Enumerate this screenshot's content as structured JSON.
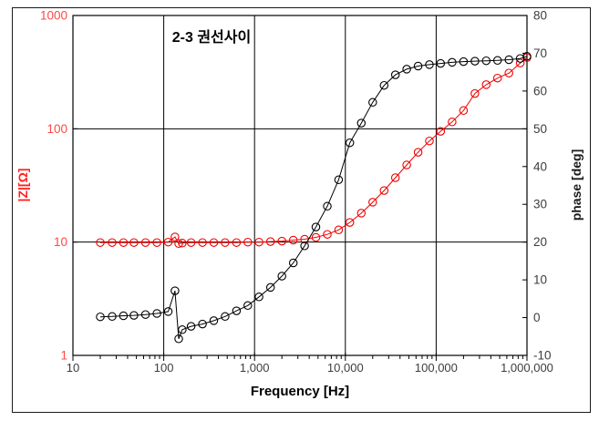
{
  "figure": {
    "background": "#ffffff",
    "frame_color": "#1a1a1a"
  },
  "chart_data": {
    "type": "line",
    "title": "2-3 권선사이",
    "xlabel": "Frequency [Hz]",
    "grid": true,
    "legend": "none",
    "x_axis": {
      "scale": "log",
      "min": 10,
      "max": 1000000,
      "tick_values": [
        10,
        100,
        1000,
        10000,
        100000,
        1000000
      ],
      "tick_labels": [
        "10",
        "100",
        "1,000",
        "10,000",
        "100,000",
        "1,000,000"
      ],
      "tick_label_color": "#3d3d3d"
    },
    "y_left": {
      "label": "|Z|[Ω]",
      "scale": "log",
      "min": 1,
      "max": 1000,
      "tick_values": [
        1,
        10,
        100,
        1000
      ],
      "tick_labels": [
        "1",
        "10",
        "100",
        "1000"
      ],
      "tick_label_color": "#ff4747",
      "title_color": "#ff1f1f"
    },
    "y_right": {
      "label": "phase [deg]",
      "scale": "linear",
      "min": -10,
      "max": 80,
      "tick_values": [
        -10,
        0,
        10,
        20,
        30,
        40,
        50,
        60,
        70,
        80
      ],
      "tick_labels": [
        "-10",
        "0",
        "10",
        "20",
        "30",
        "40",
        "50",
        "60",
        "70",
        "80"
      ],
      "tick_label_color": "#3d3d3d"
    },
    "frequencies": [
      20,
      27,
      36,
      47,
      63,
      84,
      112,
      133,
      146,
      160,
      200,
      267,
      356,
      474,
      632,
      843,
      1120,
      1500,
      2000,
      2670,
      3560,
      4740,
      6320,
      8430,
      11200,
      15000,
      20000,
      26700,
      35600,
      47400,
      63200,
      84300,
      112000,
      150000,
      200000,
      267000,
      356000,
      474000,
      632000,
      843000,
      1000000
    ],
    "series": [
      {
        "name": "|Z| impedance",
        "axis": "left",
        "color": "#f00000",
        "marker": "circle",
        "values": [
          9.9,
          9.9,
          9.9,
          9.9,
          9.9,
          9.9,
          10.0,
          11.1,
          9.7,
          9.8,
          9.9,
          9.9,
          9.9,
          9.9,
          9.9,
          10.0,
          10.0,
          10.1,
          10.2,
          10.4,
          10.6,
          11.0,
          11.7,
          12.8,
          14.9,
          18.0,
          22.5,
          28.5,
          37.0,
          48.0,
          62.0,
          78.0,
          95.0,
          115,
          145,
          205,
          245,
          280,
          310,
          380,
          425
        ]
      },
      {
        "name": "phase",
        "axis": "right",
        "color": "#000000",
        "marker": "circle",
        "values": [
          0.2,
          0.3,
          0.5,
          0.6,
          0.8,
          1.1,
          1.6,
          7.1,
          -5.6,
          -3.2,
          -2.3,
          -1.7,
          -0.8,
          0.3,
          1.8,
          3.2,
          5.5,
          8.0,
          11.0,
          14.5,
          19.0,
          24.0,
          29.5,
          36.5,
          46.3,
          51.5,
          57.0,
          61.5,
          64.3,
          65.8,
          66.6,
          67.0,
          67.3,
          67.6,
          67.8,
          67.9,
          68.0,
          68.1,
          68.3,
          68.6,
          69.2
        ]
      }
    ]
  }
}
